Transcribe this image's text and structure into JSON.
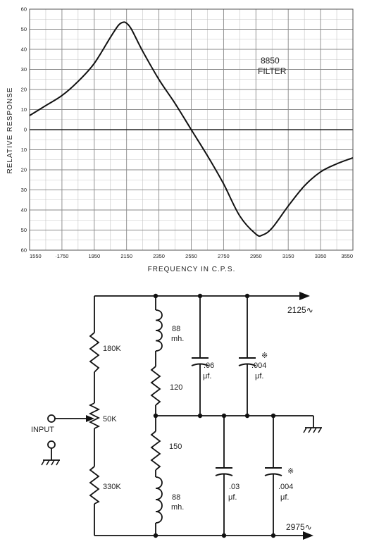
{
  "chart_data": {
    "type": "line",
    "xlabel": "FREQUENCY IN C.P.S.",
    "ylabel": "RELATIVE RESPONSE",
    "annotation": [
      "8850",
      "FILTER"
    ],
    "x_ticks": [
      "1550",
      "·1750",
      "1950",
      "2150",
      "2350",
      "2550",
      "2750",
      "2950",
      "3150",
      "3350",
      "3550"
    ],
    "y_ticks": [
      "60",
      "50",
      "40",
      "30",
      "20",
      "10",
      "0",
      "10",
      "20",
      "30",
      "40",
      "50",
      "60"
    ],
    "xlim": [
      1550,
      3550
    ],
    "ylim": [
      -60,
      60
    ],
    "grid": true,
    "series": [
      {
        "x": [
          1550,
          1650,
          1750,
          1850,
          1950,
          2050,
          2100,
          2130,
          2150,
          2180,
          2250,
          2350,
          2450,
          2550,
          2650,
          2750,
          2850,
          2950,
          2990,
          3050,
          3150,
          3250,
          3350,
          3450,
          3550
        ],
        "y": [
          7,
          12,
          17,
          24,
          33,
          46,
          52,
          53.5,
          53,
          50,
          39,
          25,
          13,
          0,
          -13,
          -27,
          -43,
          -52,
          -52.5,
          -49,
          -38,
          -28,
          -21,
          -17,
          -14
        ]
      }
    ]
  },
  "circuit": {
    "output_top": "2125∿",
    "output_bottom": "2975∿",
    "input_label": "INPUT",
    "components": [
      {
        "ref": "r-180k",
        "label": "180K"
      },
      {
        "ref": "pot-50k",
        "label": "50K"
      },
      {
        "ref": "r-330k",
        "label": "330K"
      },
      {
        "ref": "l-top",
        "label": [
          "88",
          "mh."
        ]
      },
      {
        "ref": "r-120",
        "label": "120"
      },
      {
        "ref": "r-150",
        "label": "150"
      },
      {
        "ref": "l-bottom",
        "label": [
          "88",
          "mh."
        ]
      },
      {
        "ref": "c-06",
        "label": [
          ".06",
          "μf."
        ]
      },
      {
        "ref": "c-004-top",
        "label": [
          ".004",
          "μf."
        ],
        "marker": "※"
      },
      {
        "ref": "c-03",
        "label": [
          ".03",
          "μf."
        ]
      },
      {
        "ref": "c-004-bottom",
        "label": [
          ".004",
          "μf."
        ],
        "marker": "※"
      }
    ]
  }
}
